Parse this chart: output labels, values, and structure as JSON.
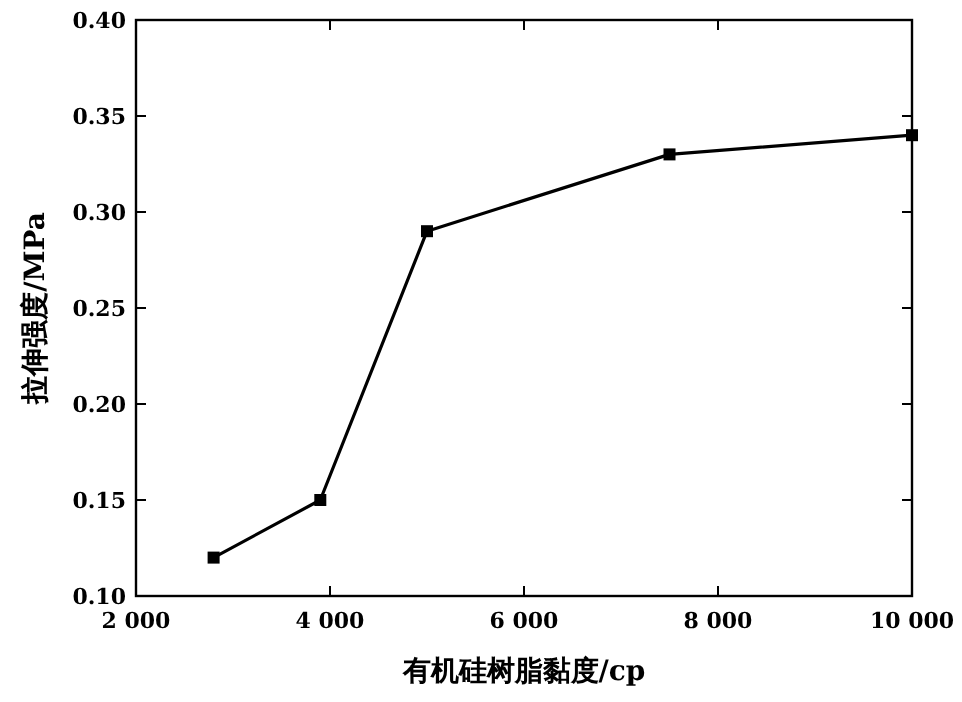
{
  "chart_data": {
    "type": "line",
    "xlabel": "有机硅树脂黏度/cp",
    "ylabel": "拉伸强度/MPa",
    "x": [
      2800,
      3900,
      5000,
      7500,
      10000
    ],
    "series": [
      {
        "color": "#000000",
        "values": [
          0.12,
          0.15,
          0.29,
          0.33,
          0.34
        ]
      }
    ],
    "xlim": [
      2000,
      10000
    ],
    "ylim": [
      0.1,
      0.4
    ],
    "xticks": [
      {
        "value": 2000,
        "label": "2 000"
      },
      {
        "value": 4000,
        "label": "4 000"
      },
      {
        "value": 6000,
        "label": "6 000"
      },
      {
        "value": 8000,
        "label": "8 000"
      },
      {
        "value": 10000,
        "label": "10 000"
      }
    ],
    "yticks": [
      {
        "value": 0.1,
        "label": "0.10"
      },
      {
        "value": 0.15,
        "label": "0.15"
      },
      {
        "value": 0.2,
        "label": "0.20"
      },
      {
        "value": 0.25,
        "label": "0.25"
      },
      {
        "value": 0.3,
        "label": "0.30"
      },
      {
        "value": 0.35,
        "label": "0.35"
      },
      {
        "value": 0.4,
        "label": "0.40"
      }
    ],
    "marker": "square",
    "line_style": "solid",
    "grid": false
  }
}
